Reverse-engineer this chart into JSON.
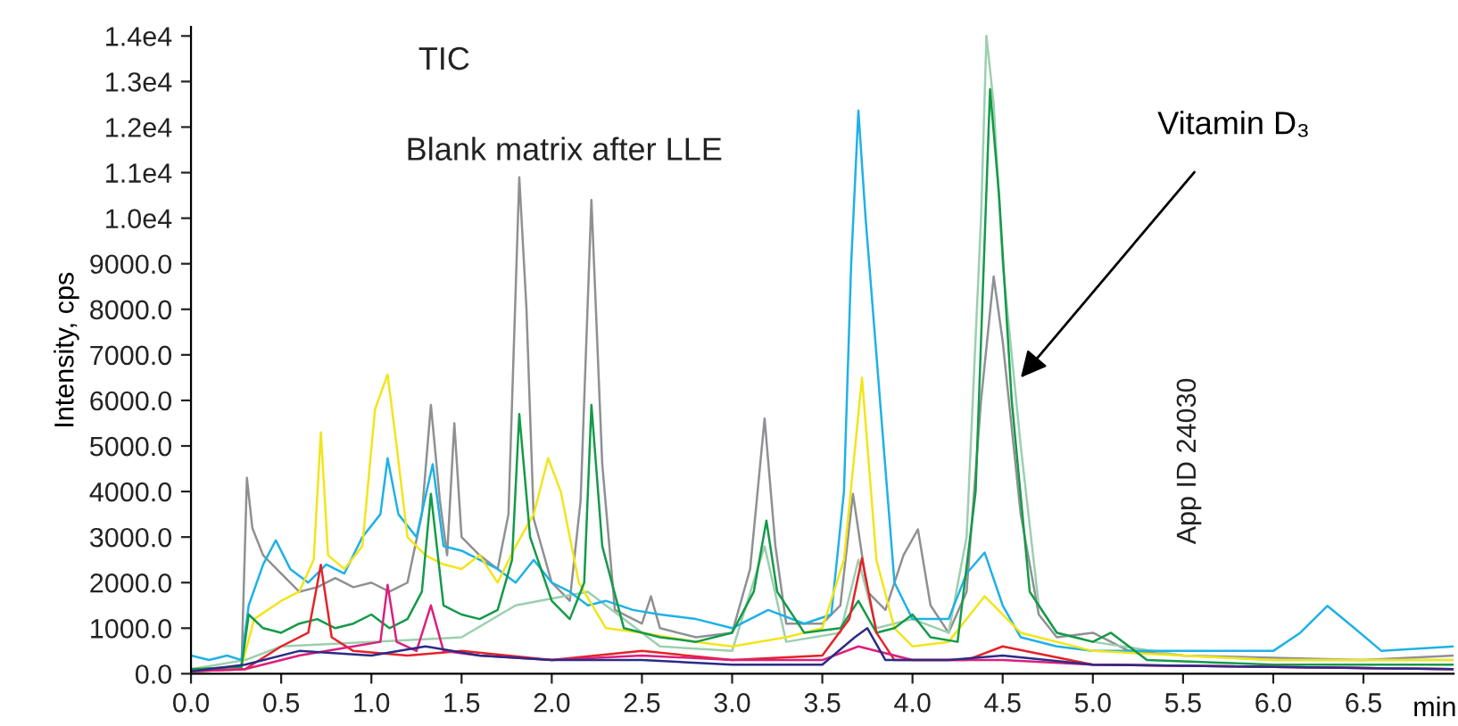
{
  "chart_data": {
    "type": "line",
    "ylabel": "Intensity, cps",
    "xlabel": "min",
    "xlim": [
      0,
      7.0
    ],
    "ylim": [
      0,
      14200
    ],
    "xticks": [
      {
        "value": 0,
        "label": "0.0"
      },
      {
        "value": 0.5,
        "label": "0.5"
      },
      {
        "value": 1,
        "label": "1.0"
      },
      {
        "value": 1.5,
        "label": "1.5"
      },
      {
        "value": 2,
        "label": "2.0"
      },
      {
        "value": 2.5,
        "label": "2.5"
      },
      {
        "value": 3,
        "label": "3.0"
      },
      {
        "value": 3.5,
        "label": "3.5"
      },
      {
        "value": 4,
        "label": "4.0"
      },
      {
        "value": 4.5,
        "label": "4.5"
      },
      {
        "value": 5,
        "label": "5.0"
      },
      {
        "value": 5.5,
        "label": "5.5"
      },
      {
        "value": 6,
        "label": "6.0"
      },
      {
        "value": 6.5,
        "label": "6.5"
      }
    ],
    "yticks": [
      {
        "value": 0,
        "label": "0.0"
      },
      {
        "value": 1000,
        "label": "1000.0"
      },
      {
        "value": 2000,
        "label": "2000.0"
      },
      {
        "value": 3000,
        "label": "3000.0"
      },
      {
        "value": 4000,
        "label": "4000.0"
      },
      {
        "value": 5000,
        "label": "5000.0"
      },
      {
        "value": 6000,
        "label": "6000.0"
      },
      {
        "value": 7000,
        "label": "7000.0"
      },
      {
        "value": 8000,
        "label": "8000.0"
      },
      {
        "value": 9000,
        "label": "9000.0"
      },
      {
        "value": 10000,
        "label": "1.0e4"
      },
      {
        "value": 11000,
        "label": "1.1e4"
      },
      {
        "value": 12000,
        "label": "1.2e4"
      },
      {
        "value": 13000,
        "label": "1.3e4"
      },
      {
        "value": 14000,
        "label": "1.4e4"
      }
    ],
    "grid": false,
    "legend": false,
    "marker": "none",
    "line_style": "solid",
    "annotations": [
      "TIC",
      "Blank matrix after LLE",
      {
        "text": "Vitamin D₃",
        "x": 4.6,
        "y": 6500
      },
      "App ID 24030"
    ],
    "series": [
      {
        "color": "#8e9093",
        "x": [
          0,
          0.28,
          0.31,
          0.34,
          0.4,
          0.5,
          0.6,
          0.7,
          0.8,
          0.9,
          1.0,
          1.1,
          1.2,
          1.28,
          1.33,
          1.38,
          1.42,
          1.46,
          1.5,
          1.6,
          1.7,
          1.76,
          1.82,
          1.86,
          1.9,
          2.0,
          2.1,
          2.16,
          2.22,
          2.28,
          2.35,
          2.5,
          2.55,
          2.6,
          2.8,
          3.0,
          3.1,
          3.18,
          3.24,
          3.3,
          3.5,
          3.6,
          3.67,
          3.75,
          3.85,
          3.95,
          4.03,
          4.1,
          4.2,
          4.3,
          4.38,
          4.45,
          4.5,
          4.6,
          4.7,
          4.8,
          5.0,
          5.2,
          5.5,
          6.0,
          6.5,
          7.0
        ],
        "values": [
          100,
          150,
          4300,
          3200,
          2600,
          2200,
          1800,
          1900,
          2100,
          1900,
          2000,
          1800,
          2000,
          3500,
          5900,
          3800,
          2600,
          5500,
          3000,
          2600,
          2300,
          3500,
          10900,
          8000,
          3400,
          2000,
          1600,
          3800,
          10400,
          4600,
          1400,
          1100,
          1700,
          1000,
          800,
          900,
          2300,
          5600,
          2800,
          1100,
          1100,
          1500,
          3950,
          1800,
          1400,
          2600,
          3170,
          1500,
          900,
          1800,
          6000,
          8720,
          7300,
          3500,
          1300,
          800,
          900,
          500,
          400,
          350,
          300,
          400
        ]
      },
      {
        "color": "#9ccfae",
        "x": [
          0,
          0.3,
          0.5,
          1.0,
          1.5,
          1.8,
          2.2,
          2.6,
          3.0,
          3.18,
          3.3,
          3.6,
          3.7,
          3.8,
          4.0,
          4.2,
          4.3,
          4.38,
          4.41,
          4.45,
          4.5,
          4.55,
          4.6,
          4.7,
          4.8,
          5.0,
          5.5,
          6.0,
          7.0
        ],
        "values": [
          100,
          300,
          600,
          700,
          800,
          1500,
          1800,
          600,
          500,
          2800,
          700,
          900,
          2500,
          1000,
          1200,
          900,
          3000,
          10000,
          14000,
          12500,
          9000,
          7000,
          5000,
          1500,
          900,
          700,
          400,
          300,
          300
        ]
      },
      {
        "color": "#1eb1e6",
        "x": [
          0,
          0.1,
          0.2,
          0.28,
          0.32,
          0.4,
          0.47,
          0.55,
          0.65,
          0.75,
          0.85,
          0.95,
          1.05,
          1.09,
          1.15,
          1.25,
          1.34,
          1.4,
          1.5,
          1.6,
          1.7,
          1.8,
          1.9,
          2.0,
          2.1,
          2.2,
          2.3,
          2.45,
          2.6,
          2.8,
          3.0,
          3.2,
          3.4,
          3.55,
          3.62,
          3.66,
          3.7,
          3.74,
          3.8,
          3.9,
          4.0,
          4.2,
          4.3,
          4.4,
          4.5,
          4.6,
          4.8,
          5.0,
          5.5,
          6.0,
          6.15,
          6.3,
          6.45,
          6.6,
          7.0
        ],
        "values": [
          400,
          300,
          400,
          300,
          1500,
          2400,
          2930,
          2300,
          2000,
          2400,
          2200,
          3000,
          3500,
          4730,
          3500,
          3000,
          4600,
          2800,
          2700,
          2500,
          2300,
          2000,
          2500,
          2000,
          1800,
          1500,
          1600,
          1400,
          1300,
          1200,
          1000,
          1400,
          1100,
          1300,
          4000,
          9000,
          12360,
          10000,
          7000,
          2000,
          1200,
          1200,
          2200,
          2660,
          1500,
          800,
          600,
          500,
          500,
          500,
          900,
          1490,
          1000,
          500,
          600
        ]
      },
      {
        "color": "#f2e51a",
        "x": [
          0,
          0.28,
          0.35,
          0.5,
          0.6,
          0.68,
          0.72,
          0.76,
          0.85,
          0.95,
          1.02,
          1.09,
          1.14,
          1.2,
          1.3,
          1.4,
          1.5,
          1.6,
          1.7,
          1.8,
          1.9,
          1.98,
          2.05,
          2.15,
          2.3,
          2.5,
          2.8,
          3.0,
          3.3,
          3.5,
          3.62,
          3.72,
          3.8,
          3.9,
          4.0,
          4.2,
          4.4,
          4.6,
          5.0,
          6.0,
          7.0
        ],
        "values": [
          100,
          150,
          1200,
          1600,
          1800,
          2500,
          5300,
          2600,
          2300,
          2800,
          5800,
          6570,
          5000,
          3000,
          2600,
          2400,
          2300,
          2600,
          2000,
          2800,
          3500,
          4730,
          4000,
          2000,
          1000,
          900,
          700,
          600,
          800,
          1000,
          2500,
          6500,
          2500,
          1000,
          600,
          700,
          1700,
          900,
          500,
          300,
          300
        ]
      },
      {
        "color": "#149a48",
        "x": [
          0,
          0.28,
          0.32,
          0.4,
          0.5,
          0.6,
          0.7,
          0.8,
          0.9,
          1.0,
          1.1,
          1.2,
          1.28,
          1.33,
          1.4,
          1.5,
          1.6,
          1.7,
          1.78,
          1.82,
          1.88,
          2.0,
          2.1,
          2.18,
          2.22,
          2.28,
          2.4,
          2.6,
          2.8,
          3.0,
          3.12,
          3.19,
          3.25,
          3.4,
          3.6,
          3.7,
          3.8,
          3.9,
          4.0,
          4.1,
          4.25,
          4.35,
          4.43,
          4.48,
          4.55,
          4.65,
          4.8,
          4.9,
          5.0,
          5.1,
          5.3,
          6.0,
          7.0
        ],
        "values": [
          100,
          150,
          1300,
          1000,
          900,
          1100,
          1200,
          1000,
          1100,
          1300,
          1000,
          1200,
          1800,
          3950,
          1500,
          1300,
          1200,
          1400,
          2500,
          5700,
          3000,
          1600,
          1200,
          2000,
          5900,
          2800,
          1000,
          800,
          700,
          900,
          1800,
          3360,
          1800,
          900,
          1000,
          1600,
          900,
          1000,
          1300,
          800,
          700,
          4000,
          12830,
          10500,
          6000,
          1800,
          900,
          800,
          700,
          900,
          300,
          200,
          200
        ]
      },
      {
        "color": "#e42328",
        "x": [
          0,
          0.3,
          0.5,
          0.65,
          0.72,
          0.78,
          0.9,
          1.2,
          1.5,
          2.0,
          2.5,
          3.0,
          3.5,
          3.65,
          3.72,
          3.8,
          3.9,
          4.3,
          4.5,
          5.0,
          7.0
        ],
        "values": [
          50,
          100,
          600,
          900,
          2390,
          800,
          500,
          400,
          500,
          300,
          500,
          300,
          400,
          1200,
          2540,
          900,
          300,
          300,
          600,
          200,
          100
        ]
      },
      {
        "color": "#dc1f7c",
        "x": [
          0,
          0.3,
          0.6,
          0.9,
          1.05,
          1.09,
          1.14,
          1.25,
          1.33,
          1.4,
          1.6,
          2.0,
          2.5,
          3.0,
          3.5,
          3.7,
          4.0,
          4.5,
          5.0,
          7.0
        ],
        "values": [
          50,
          100,
          400,
          600,
          700,
          1950,
          700,
          500,
          1500,
          500,
          400,
          300,
          400,
          300,
          300,
          600,
          300,
          300,
          200,
          100
        ]
      },
      {
        "color": "#2b2c86",
        "x": [
          0,
          0.3,
          0.6,
          1.0,
          1.3,
          1.6,
          2.0,
          2.5,
          3.0,
          3.5,
          3.68,
          3.75,
          3.85,
          4.2,
          4.5,
          5.0,
          7.0
        ],
        "values": [
          50,
          200,
          500,
          400,
          600,
          400,
          300,
          300,
          200,
          200,
          800,
          1000,
          300,
          300,
          400,
          200,
          100
        ]
      }
    ]
  }
}
